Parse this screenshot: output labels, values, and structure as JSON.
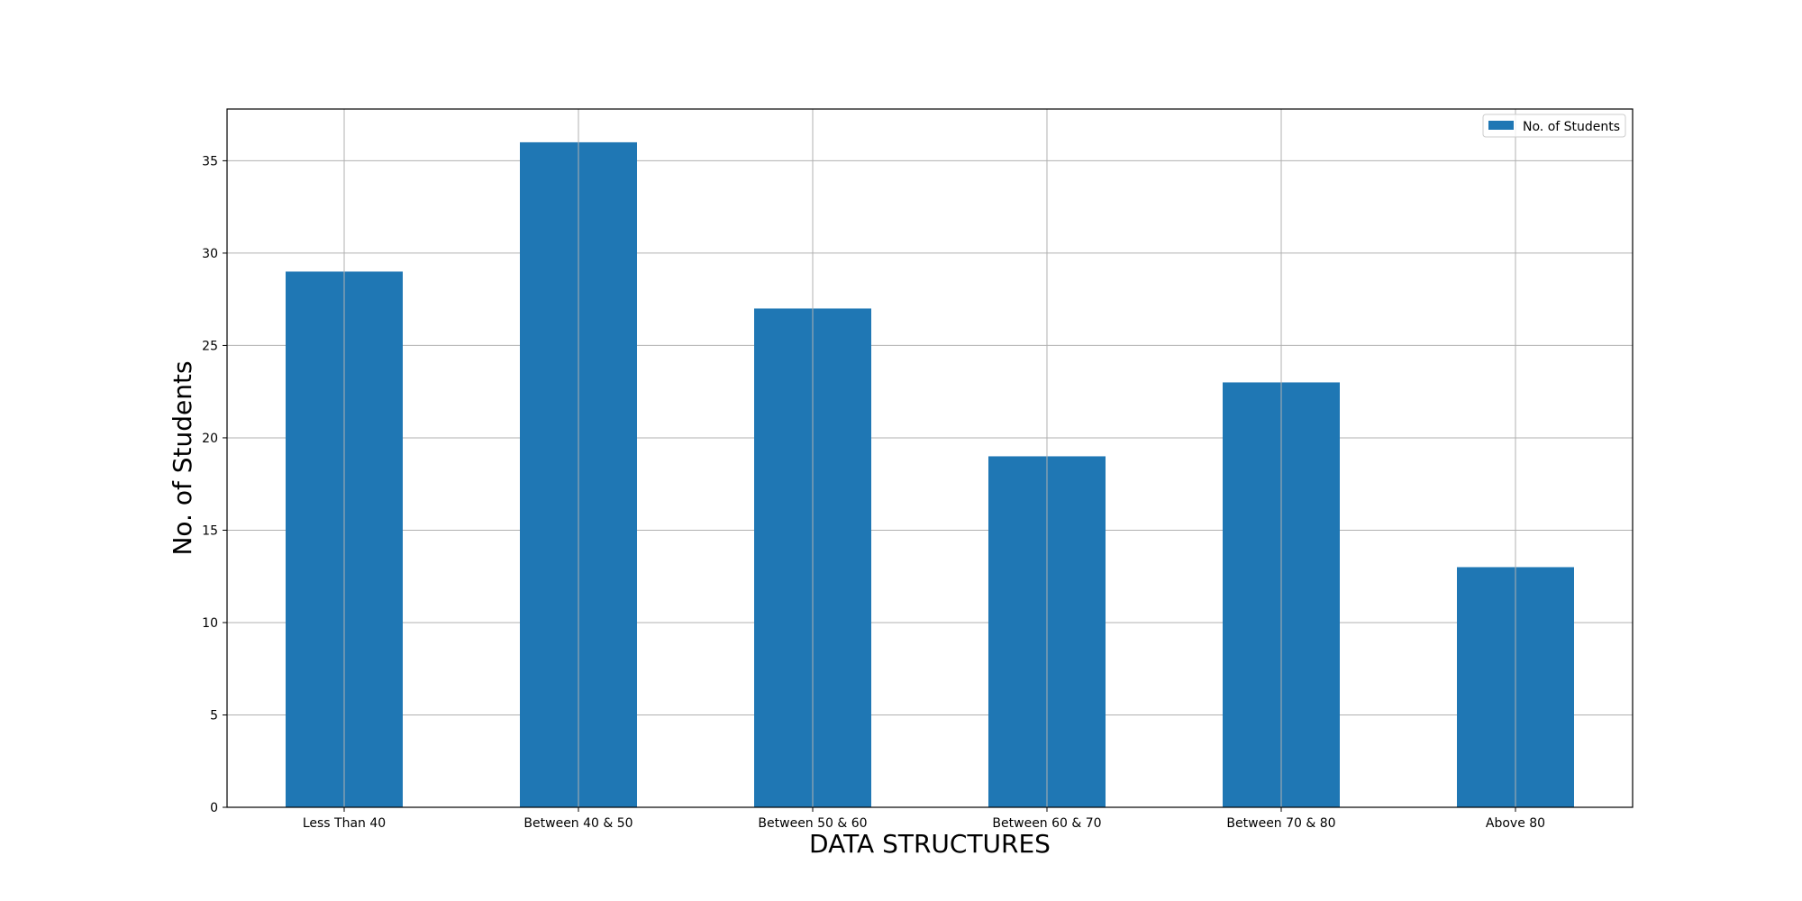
{
  "chart_data": {
    "type": "bar",
    "categories": [
      "Less Than 40",
      "Between 40 & 50",
      "Between 50 & 60",
      "Between 60 & 70",
      "Between 70 & 80",
      "Above 80"
    ],
    "series": [
      {
        "name": "No. of Students",
        "values": [
          29,
          36,
          27,
          19,
          23,
          13
        ],
        "color": "#1f77b4"
      }
    ],
    "title": "",
    "xlabel": "DATA STRUCTURES",
    "ylabel": "No. of Students",
    "ylim": [
      0,
      37.8
    ],
    "yticks": [
      0,
      5,
      10,
      15,
      20,
      25,
      30,
      35
    ],
    "grid": true,
    "legend_position": "top-right",
    "colors": {
      "grid": "#b0b0b0",
      "axis": "#000000"
    }
  }
}
